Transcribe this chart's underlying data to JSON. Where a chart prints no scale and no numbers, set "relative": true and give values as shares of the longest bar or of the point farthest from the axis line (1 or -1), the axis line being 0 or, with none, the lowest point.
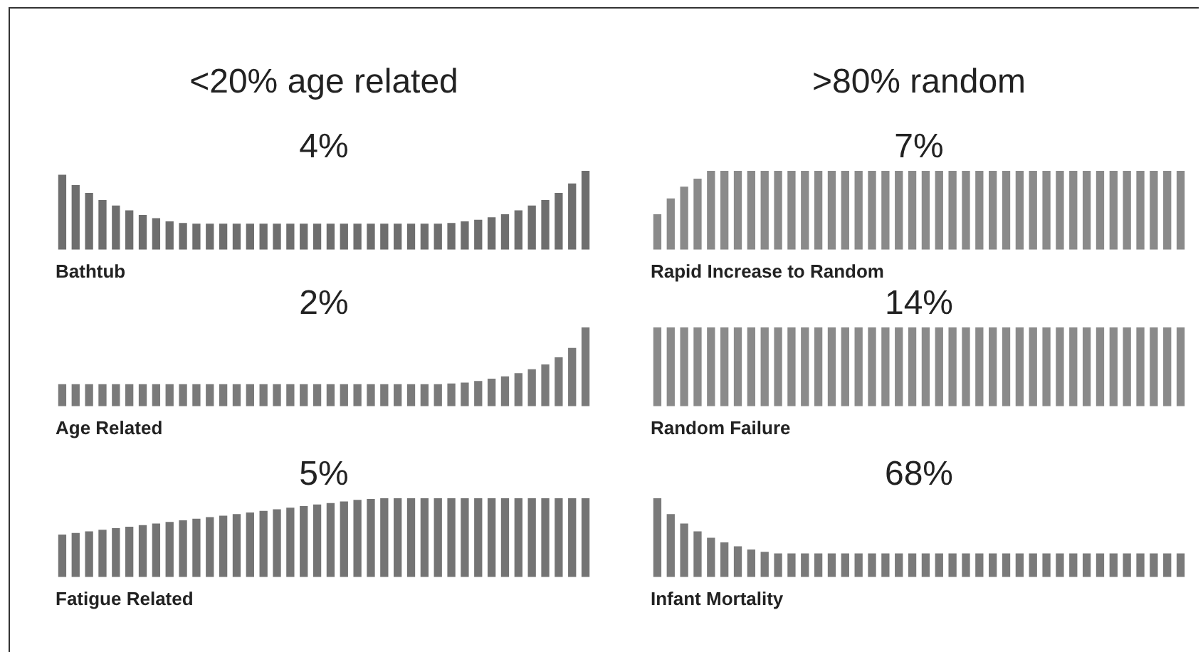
{
  "chart_data": [
    {
      "type": "bar",
      "relative": true,
      "title": "<20% age related",
      "xlabel": "Bathtub",
      "annotations": [
        "4%"
      ],
      "color": "#6e6e6e",
      "categories": [
        null,
        null,
        null,
        null,
        null,
        null,
        null,
        null,
        null,
        null,
        null,
        null,
        null,
        null,
        null,
        null,
        null,
        null,
        null,
        null,
        null,
        null,
        null,
        null,
        null,
        null,
        null,
        null,
        null,
        null,
        null,
        null,
        null,
        null,
        null,
        null,
        null,
        null,
        null,
        null
      ],
      "values": [
        0.95,
        0.82,
        0.72,
        0.63,
        0.56,
        0.5,
        0.44,
        0.4,
        0.36,
        0.34,
        0.33,
        0.33,
        0.33,
        0.33,
        0.33,
        0.33,
        0.33,
        0.33,
        0.33,
        0.33,
        0.33,
        0.33,
        0.33,
        0.33,
        0.33,
        0.33,
        0.33,
        0.33,
        0.33,
        0.34,
        0.36,
        0.38,
        0.41,
        0.45,
        0.5,
        0.56,
        0.63,
        0.72,
        0.84,
        1
      ]
    },
    {
      "type": "bar",
      "relative": true,
      "title": ">80% random",
      "xlabel": "Rapid Increase to Random",
      "annotations": [
        "7%"
      ],
      "color": "#8a8a8a",
      "categories": [
        null,
        null,
        null,
        null,
        null,
        null,
        null,
        null,
        null,
        null,
        null,
        null,
        null,
        null,
        null,
        null,
        null,
        null,
        null,
        null,
        null,
        null,
        null,
        null,
        null,
        null,
        null,
        null,
        null,
        null,
        null,
        null,
        null,
        null,
        null,
        null,
        null,
        null,
        null,
        null
      ],
      "values": [
        0.45,
        0.65,
        0.8,
        0.9,
        1,
        1,
        1,
        1,
        1,
        1,
        1,
        1,
        1,
        1,
        1,
        1,
        1,
        1,
        1,
        1,
        1,
        1,
        1,
        1,
        1,
        1,
        1,
        1,
        1,
        1,
        1,
        1,
        1,
        1,
        1,
        1,
        1,
        1,
        1,
        1
      ]
    },
    {
      "type": "bar",
      "relative": true,
      "xlabel": "Age Related",
      "annotations": [
        "2%"
      ],
      "color": "#7a7a7a",
      "categories": [
        null,
        null,
        null,
        null,
        null,
        null,
        null,
        null,
        null,
        null,
        null,
        null,
        null,
        null,
        null,
        null,
        null,
        null,
        null,
        null,
        null,
        null,
        null,
        null,
        null,
        null,
        null,
        null,
        null,
        null,
        null,
        null,
        null,
        null,
        null,
        null,
        null,
        null,
        null,
        null
      ],
      "values": [
        0.28,
        0.28,
        0.28,
        0.28,
        0.28,
        0.28,
        0.28,
        0.28,
        0.28,
        0.28,
        0.28,
        0.28,
        0.28,
        0.28,
        0.28,
        0.28,
        0.28,
        0.28,
        0.28,
        0.28,
        0.28,
        0.28,
        0.28,
        0.28,
        0.28,
        0.28,
        0.28,
        0.28,
        0.28,
        0.29,
        0.3,
        0.32,
        0.35,
        0.38,
        0.42,
        0.47,
        0.53,
        0.62,
        0.74,
        1
      ]
    },
    {
      "type": "bar",
      "relative": true,
      "xlabel": "Random Failure",
      "annotations": [
        "14%"
      ],
      "color": "#8a8a8a",
      "categories": [
        null,
        null,
        null,
        null,
        null,
        null,
        null,
        null,
        null,
        null,
        null,
        null,
        null,
        null,
        null,
        null,
        null,
        null,
        null,
        null,
        null,
        null,
        null,
        null,
        null,
        null,
        null,
        null,
        null,
        null,
        null,
        null,
        null,
        null,
        null,
        null,
        null,
        null,
        null,
        null
      ],
      "values": [
        1,
        1,
        1,
        1,
        1,
        1,
        1,
        1,
        1,
        1,
        1,
        1,
        1,
        1,
        1,
        1,
        1,
        1,
        1,
        1,
        1,
        1,
        1,
        1,
        1,
        1,
        1,
        1,
        1,
        1,
        1,
        1,
        1,
        1,
        1,
        1,
        1,
        1,
        1,
        1
      ]
    },
    {
      "type": "bar",
      "relative": true,
      "xlabel": "Fatigue Related",
      "annotations": [
        "5%"
      ],
      "color": "#747474",
      "categories": [
        null,
        null,
        null,
        null,
        null,
        null,
        null,
        null,
        null,
        null,
        null,
        null,
        null,
        null,
        null,
        null,
        null,
        null,
        null,
        null,
        null,
        null,
        null,
        null,
        null,
        null,
        null,
        null,
        null,
        null,
        null,
        null,
        null,
        null,
        null,
        null,
        null,
        null,
        null,
        null
      ],
      "values": [
        0.54,
        0.56,
        0.58,
        0.6,
        0.62,
        0.64,
        0.66,
        0.68,
        0.7,
        0.72,
        0.74,
        0.76,
        0.78,
        0.8,
        0.82,
        0.84,
        0.86,
        0.88,
        0.9,
        0.92,
        0.94,
        0.96,
        0.98,
        0.99,
        1,
        1,
        1,
        1,
        1,
        1,
        1,
        1,
        1,
        1,
        1,
        1,
        1,
        1,
        1,
        1
      ]
    },
    {
      "type": "bar",
      "relative": true,
      "xlabel": "Infant Mortality",
      "annotations": [
        "68%"
      ],
      "color": "#7a7a7a",
      "categories": [
        null,
        null,
        null,
        null,
        null,
        null,
        null,
        null,
        null,
        null,
        null,
        null,
        null,
        null,
        null,
        null,
        null,
        null,
        null,
        null,
        null,
        null,
        null,
        null,
        null,
        null,
        null,
        null,
        null,
        null,
        null,
        null,
        null,
        null,
        null,
        null,
        null,
        null,
        null,
        null
      ],
      "values": [
        1,
        0.8,
        0.68,
        0.58,
        0.5,
        0.44,
        0.39,
        0.35,
        0.32,
        0.3,
        0.3,
        0.3,
        0.3,
        0.3,
        0.3,
        0.3,
        0.3,
        0.3,
        0.3,
        0.3,
        0.3,
        0.3,
        0.3,
        0.3,
        0.3,
        0.3,
        0.3,
        0.3,
        0.3,
        0.3,
        0.3,
        0.3,
        0.3,
        0.3,
        0.3,
        0.3,
        0.3,
        0.3,
        0.3,
        0.3
      ]
    }
  ]
}
